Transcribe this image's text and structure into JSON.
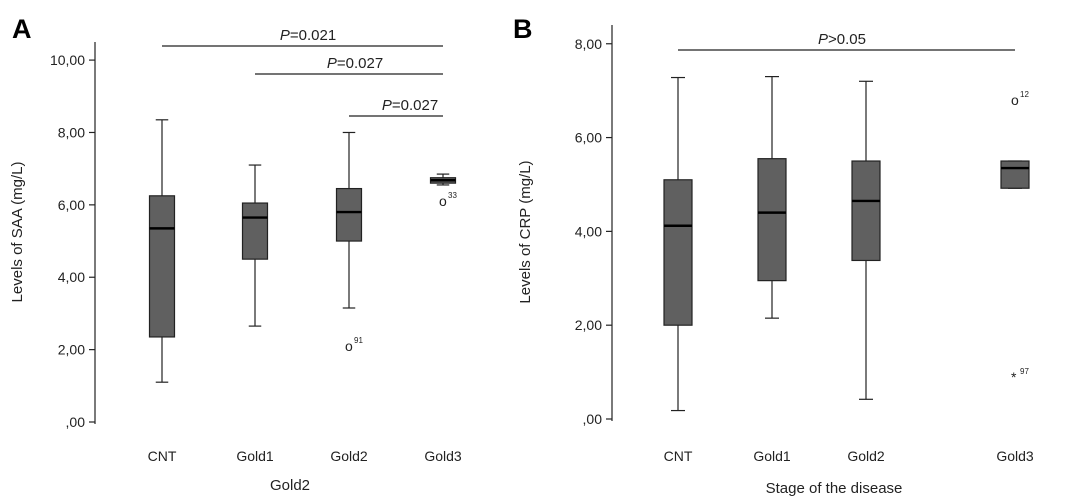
{
  "panels": [
    {
      "label": "A",
      "ylabel": "Levels of SAA (mg/L)",
      "xlabel": "Gold2",
      "yticks": [
        "10,00",
        "8,00",
        "6,00",
        "4,00",
        "2,00",
        ",00"
      ],
      "significance": [
        {
          "p_letter": "P",
          "value": "=0.021",
          "from": "CNT",
          "to": "Gold3"
        },
        {
          "p_letter": "P",
          "value": "=0.027",
          "from": "Gold1",
          "to": "Gold3"
        },
        {
          "p_letter": "P",
          "value": "=0.027",
          "from": "Gold2",
          "to": "Gold3"
        }
      ],
      "outliers": [
        {
          "category": "Gold2",
          "marker": "o",
          "id": "91",
          "value": 2.1
        },
        {
          "category": "Gold3",
          "marker": "o",
          "id": "33",
          "value": 6.1
        }
      ]
    },
    {
      "label": "B",
      "ylabel": "Levels of CRP (mg/L)",
      "xlabel": "Stage of the disease",
      "yticks": [
        "8,00",
        "6,00",
        "4,00",
        "2,00",
        ",00"
      ],
      "significance": [
        {
          "p_letter": "P",
          "value": ">0.05",
          "from": "CNT",
          "to": "Gold3"
        }
      ],
      "outliers": [
        {
          "category": "Gold3",
          "marker": "o",
          "id": "12",
          "value": 6.8
        },
        {
          "category": "Gold3",
          "marker": "*",
          "id": "97",
          "value": 0.9
        }
      ]
    }
  ],
  "chart_data": [
    {
      "type": "box",
      "categories": [
        "CNT",
        "Gold1",
        "Gold2",
        "Gold3"
      ],
      "xlabel": "Gold2",
      "ylabel": "Levels of SAA (mg/L)",
      "ylim": [
        0,
        10.5
      ],
      "grid": false,
      "box_color": "#606060",
      "boxes": [
        {
          "category": "CNT",
          "whisker_low": 1.1,
          "q1": 2.35,
          "median": 5.35,
          "q3": 6.25,
          "whisker_high": 8.35
        },
        {
          "category": "Gold1",
          "whisker_low": 2.65,
          "q1": 4.5,
          "median": 5.65,
          "q3": 6.05,
          "whisker_high": 7.1
        },
        {
          "category": "Gold2",
          "whisker_low": 3.15,
          "q1": 5.0,
          "median": 5.8,
          "q3": 6.45,
          "whisker_high": 8.0
        },
        {
          "category": "Gold3",
          "whisker_low": 6.55,
          "q1": 6.6,
          "median": 6.68,
          "q3": 6.75,
          "whisker_high": 6.85
        }
      ]
    },
    {
      "type": "box",
      "categories": [
        "CNT",
        "Gold1",
        "Gold2",
        "Gold3"
      ],
      "xlabel": "Stage of the disease",
      "ylabel": "Levels of CRP (mg/L)",
      "ylim": [
        0,
        8.4
      ],
      "grid": false,
      "box_color": "#606060",
      "boxes": [
        {
          "category": "CNT",
          "whisker_low": 0.18,
          "q1": 2.0,
          "median": 4.12,
          "q3": 5.1,
          "whisker_high": 7.28
        },
        {
          "category": "Gold1",
          "whisker_low": 2.15,
          "q1": 2.95,
          "median": 4.4,
          "q3": 5.55,
          "whisker_high": 7.3
        },
        {
          "category": "Gold2",
          "whisker_low": 0.42,
          "q1": 3.38,
          "median": 4.65,
          "q3": 5.5,
          "whisker_high": 7.2
        },
        {
          "category": "Gold3",
          "whisker_low": 4.92,
          "q1": 4.92,
          "median": 5.35,
          "q3": 5.5,
          "whisker_high": 5.5
        }
      ]
    }
  ]
}
